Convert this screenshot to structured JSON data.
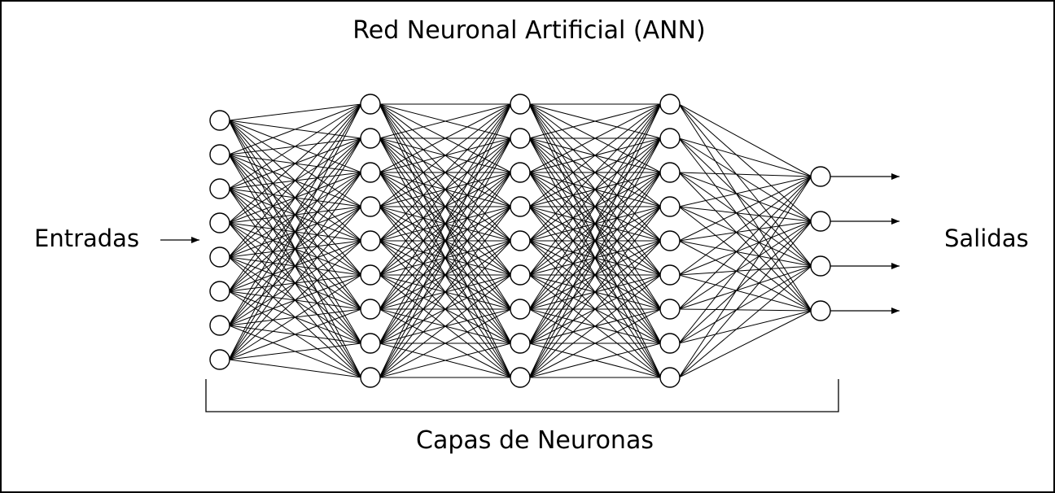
{
  "title": "Red Neuronal Artificial (ANN)",
  "inputs_label": "Entradas",
  "outputs_label": "Salidas",
  "layers_label": "Capas de Neuronas",
  "network": {
    "layer_sizes": [
      8,
      9,
      9,
      9,
      4
    ],
    "fully_connected": true
  },
  "colors": {
    "stroke": "#000000",
    "background": "#ffffff"
  }
}
